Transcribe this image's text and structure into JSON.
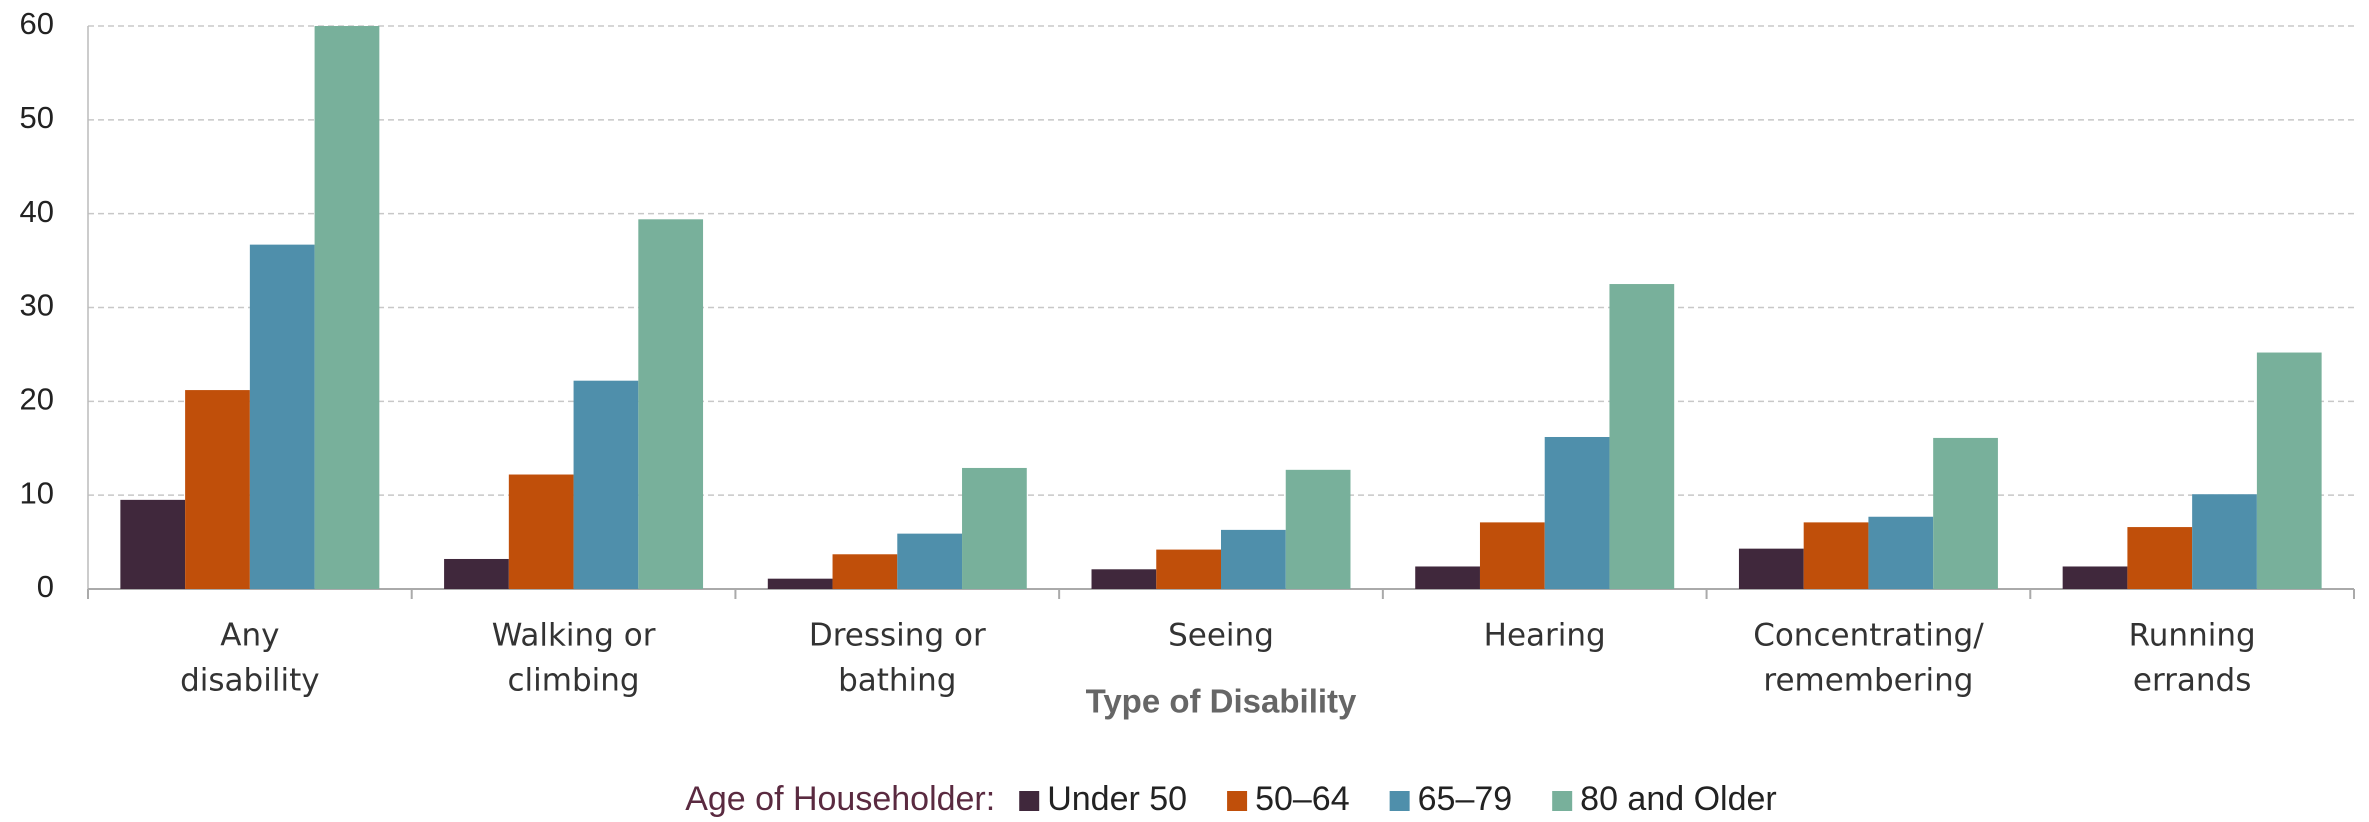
{
  "chart_data": {
    "type": "bar",
    "x_label": "Type of Disability",
    "legend_title": "Age of Householder:",
    "categories": [
      [
        "Any",
        "disability"
      ],
      [
        "Walking or",
        "climbing"
      ],
      [
        "Dressing or",
        "bathing"
      ],
      [
        "Seeing"
      ],
      [
        "Hearing"
      ],
      [
        "Concentrating/",
        "remembering"
      ],
      [
        "Running",
        "errands"
      ]
    ],
    "series": [
      {
        "name": "Under 50",
        "color": "#40283c",
        "values": [
          9.5,
          3.2,
          1.1,
          2.1,
          2.4,
          4.3,
          2.4
        ]
      },
      {
        "name": "50–64",
        "color": "#c04f0a",
        "values": [
          21.2,
          12.2,
          3.7,
          4.2,
          7.1,
          7.1,
          6.6
        ]
      },
      {
        "name": "65–79",
        "color": "#4f8fab",
        "values": [
          36.7,
          22.2,
          5.9,
          6.3,
          16.2,
          7.7,
          10.1
        ]
      },
      {
        "name": "80 and Older",
        "color": "#78b09b",
        "values": [
          60,
          39.4,
          12.9,
          12.7,
          32.5,
          16.1,
          25.2
        ]
      }
    ],
    "ylim": [
      0,
      60
    ],
    "yticks": [
      0,
      10,
      20,
      30,
      40,
      50,
      60
    ],
    "grid": true
  }
}
